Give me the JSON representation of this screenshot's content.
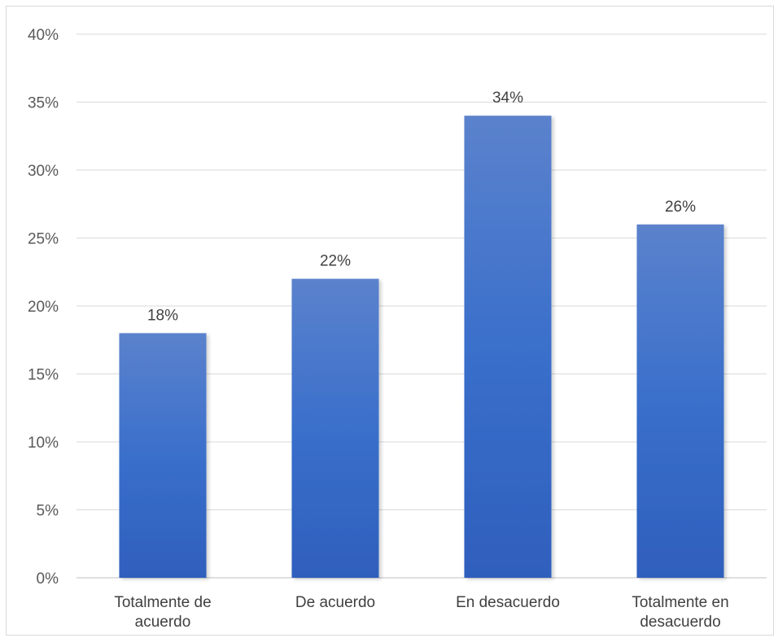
{
  "chart_data": {
    "type": "bar",
    "categories": [
      [
        "Totalmente de",
        "acuerdo"
      ],
      [
        "De acuerdo"
      ],
      [
        "En desacuerdo"
      ],
      [
        "Totalmente en",
        "desacuerdo"
      ]
    ],
    "values": [
      18,
      22,
      34,
      26
    ],
    "data_labels": [
      "18%",
      "22%",
      "34%",
      "26%"
    ],
    "ylim": [
      0,
      40
    ],
    "y_ticks": [
      0,
      5,
      10,
      15,
      20,
      25,
      30,
      35,
      40
    ],
    "y_tick_labels": [
      "0%",
      "5%",
      "10%",
      "15%",
      "20%",
      "25%",
      "30%",
      "35%",
      "40%"
    ],
    "grid": true,
    "legend": "none",
    "title": "",
    "xlabel": "",
    "ylabel": "",
    "colors": {
      "bar_top": "#5b82cc",
      "bar_mid": "#3a6fcb",
      "bar_bottom": "#2f5fbd",
      "gridline": "#d9d9d9",
      "axis": "#bfbfbf"
    }
  }
}
